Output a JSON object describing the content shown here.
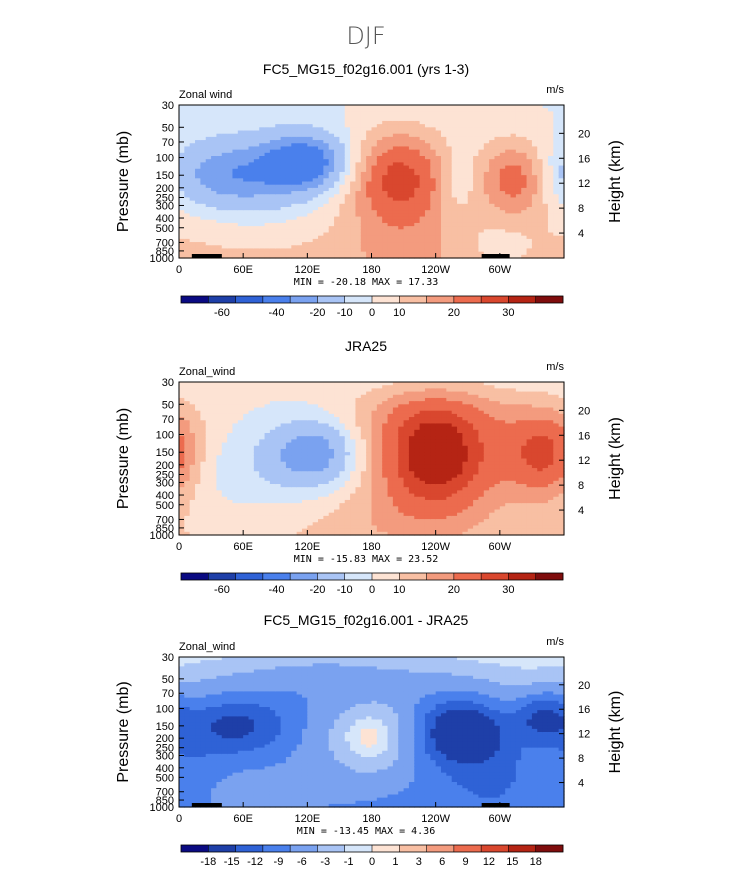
{
  "suptitle": "DJF",
  "colors": {
    "palette": [
      "#0a0a82",
      "#1e3fa8",
      "#2f62d6",
      "#4a80ec",
      "#7aa2f0",
      "#a9c4f5",
      "#d6e6fa",
      "#fde3d4",
      "#f8bfa3",
      "#f39b7e",
      "#ec6b4e",
      "#d9472e",
      "#b52414",
      "#7f0d0d"
    ]
  },
  "chart_data": [
    {
      "type": "heatmap",
      "title": "FC5_MG15_f02g16.001 (yrs 1-3)",
      "variable_label": "Zonal wind",
      "units_label": "m/s",
      "ylabel_left": "Pressure (mb)",
      "ylabel_right": "Height (km)",
      "x_ticks": [
        "0",
        "60E",
        "120E",
        "180",
        "120W",
        "60W"
      ],
      "x_tick_values": [
        0,
        60,
        120,
        180,
        240,
        300
      ],
      "xlim": [
        0,
        360
      ],
      "y_ticks": [
        "30",
        "50",
        "70",
        "100",
        "150",
        "200",
        "250",
        "300",
        "400",
        "500",
        "700",
        "850",
        "1000"
      ],
      "y_tick_values": [
        30,
        50,
        70,
        100,
        150,
        200,
        250,
        300,
        400,
        500,
        700,
        850,
        1000
      ],
      "height_ticks": [
        "20",
        "16",
        "12",
        "8",
        "4"
      ],
      "height_tick_values": [
        20,
        16,
        12,
        8,
        4
      ],
      "stats_text": "MIN = -20.18  MAX =  17.33",
      "min": -20.18,
      "max": 17.33,
      "colorbar_labels": [
        "-60",
        "-40",
        "-20",
        "-10",
        "0",
        "10",
        "20",
        "30"
      ],
      "field": [
        {
          "lon": 45,
          "p": 150,
          "v": -12,
          "slon": 45,
          "sp": 0.55
        },
        {
          "lon": 120,
          "p": 110,
          "v": -18,
          "slon": 28,
          "sp": 0.45
        },
        {
          "lon": 80,
          "p": 180,
          "v": -6,
          "slon": 55,
          "sp": 0.9
        },
        {
          "lon": 205,
          "p": 160,
          "v": 17,
          "slon": 32,
          "sp": 0.75
        },
        {
          "lon": 315,
          "p": 160,
          "v": 13,
          "slon": 22,
          "sp": 0.6
        },
        {
          "lon": 260,
          "p": 170,
          "v": -5,
          "slon": 12,
          "sp": 0.5
        },
        {
          "lon": 210,
          "p": 800,
          "v": 3,
          "slon": 40,
          "sp": 0.6
        },
        {
          "lon": 300,
          "p": 750,
          "v": -3,
          "slon": 25,
          "sp": 0.5
        }
      ],
      "base": 4
    },
    {
      "type": "heatmap",
      "title": "JRA25",
      "variable_label": "Zonal_wind",
      "units_label": "m/s",
      "ylabel_left": "Pressure (mb)",
      "ylabel_right": "Height (km)",
      "x_ticks": [
        "0",
        "60E",
        "120E",
        "180",
        "120W",
        "60W"
      ],
      "x_tick_values": [
        0,
        60,
        120,
        180,
        240,
        300
      ],
      "xlim": [
        0,
        360
      ],
      "y_ticks": [
        "30",
        "50",
        "70",
        "100",
        "150",
        "200",
        "250",
        "300",
        "400",
        "500",
        "700",
        "850",
        "1000"
      ],
      "y_tick_values": [
        30,
        50,
        70,
        100,
        150,
        200,
        250,
        300,
        400,
        500,
        700,
        850,
        1000
      ],
      "height_ticks": [
        "20",
        "16",
        "12",
        "8",
        "4"
      ],
      "height_tick_values": [
        20,
        16,
        12,
        8,
        4
      ],
      "stats_text": "MIN = -15.83  MAX =  23.52",
      "min": -15.83,
      "max": 23.52,
      "colorbar_labels": [
        "-60",
        "-40",
        "-20",
        "-10",
        "0",
        "10",
        "20",
        "30"
      ],
      "field": [
        {
          "lon": 125,
          "p": 150,
          "v": -15,
          "slon": 30,
          "sp": 0.55
        },
        {
          "lon": 70,
          "p": 300,
          "v": -4,
          "slon": 60,
          "sp": 0.8
        },
        {
          "lon": 240,
          "p": 170,
          "v": 23,
          "slon": 40,
          "sp": 0.85
        },
        {
          "lon": 345,
          "p": 160,
          "v": 18,
          "slon": 28,
          "sp": 0.7
        },
        {
          "lon": 240,
          "p": 60,
          "v": 6,
          "slon": 70,
          "sp": 0.5
        },
        {
          "lon": 20,
          "p": 180,
          "v": -3,
          "slon": 30,
          "sp": 0.6
        },
        {
          "lon": 200,
          "p": 700,
          "v": 3,
          "slon": 60,
          "sp": 0.5
        }
      ],
      "base": 3
    },
    {
      "type": "heatmap",
      "title": "FC5_MG15_f02g16.001 - JRA25",
      "variable_label": "Zonal_wind",
      "units_label": "m/s",
      "ylabel_left": "Pressure (mb)",
      "ylabel_right": "Height (km)",
      "x_ticks": [
        "0",
        "60E",
        "120E",
        "180",
        "120W",
        "60W"
      ],
      "x_tick_values": [
        0,
        60,
        120,
        180,
        240,
        300
      ],
      "xlim": [
        0,
        360
      ],
      "y_ticks": [
        "30",
        "50",
        "70",
        "100",
        "150",
        "200",
        "250",
        "300",
        "400",
        "500",
        "700",
        "850",
        "1000"
      ],
      "y_tick_values": [
        30,
        50,
        70,
        100,
        150,
        200,
        250,
        300,
        400,
        500,
        700,
        850,
        1000
      ],
      "height_ticks": [
        "20",
        "16",
        "12",
        "8",
        "4"
      ],
      "height_tick_values": [
        20,
        16,
        12,
        8,
        4
      ],
      "stats_text": "MIN = -13.45  MAX =  4.36",
      "min": -13.45,
      "max": 4.36,
      "colorbar_labels": [
        "-18",
        "-15",
        "-12",
        "-9",
        "-6",
        "-3",
        "-1",
        "0",
        "1",
        "3",
        "6",
        "9",
        "12",
        "15",
        "18"
      ],
      "field": [
        {
          "lon": 50,
          "p": 150,
          "v": -9,
          "slon": 40,
          "sp": 0.5
        },
        {
          "lon": 265,
          "p": 170,
          "v": -13,
          "slon": 30,
          "sp": 0.55
        },
        {
          "lon": 340,
          "p": 120,
          "v": -8,
          "slon": 18,
          "sp": 0.4
        },
        {
          "lon": 180,
          "p": 200,
          "v": 5,
          "slon": 30,
          "sp": 0.7
        },
        {
          "lon": 60,
          "p": 800,
          "v": 3,
          "slon": 60,
          "sp": 0.35
        },
        {
          "lon": 150,
          "p": 60,
          "v": -4,
          "slon": 80,
          "sp": 0.6
        },
        {
          "lon": 300,
          "p": 500,
          "v": -3,
          "slon": 40,
          "sp": 0.7
        },
        {
          "lon": 10,
          "p": 600,
          "v": -3,
          "slon": 20,
          "sp": 0.6
        }
      ],
      "base": -5
    }
  ]
}
